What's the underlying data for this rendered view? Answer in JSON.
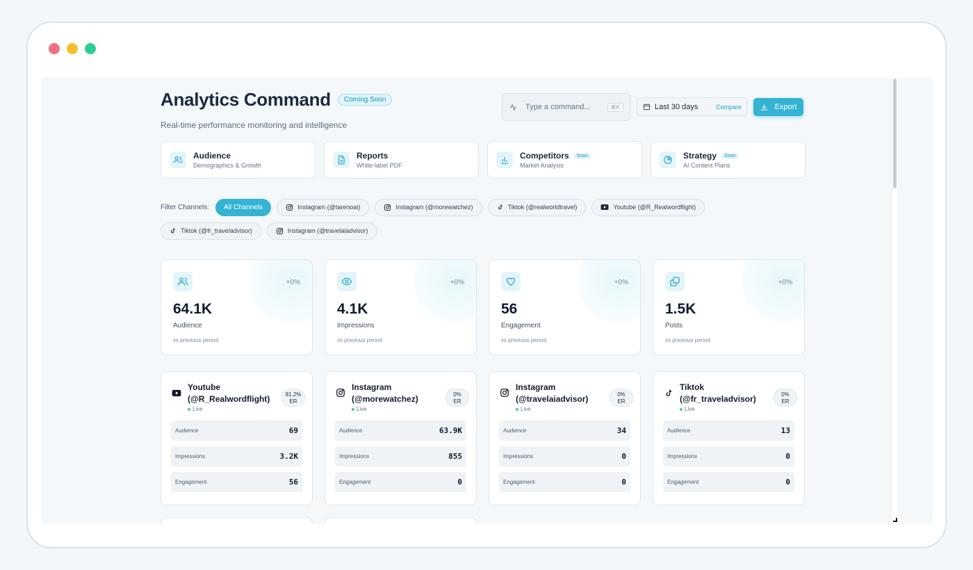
{
  "window": {
    "dot_colors": [
      "#f06f80",
      "#f6c02d",
      "#2fcf8f"
    ]
  },
  "header": {
    "title": "Analytics Command",
    "badge": "Coming Soon",
    "subtitle": "Real-time performance monitoring and intelligence",
    "command_placeholder": "Type a command...",
    "command_shortcut": "⌘K",
    "date_range": "Last 30 days",
    "compare_label": "Compare",
    "export_label": "Export"
  },
  "nav_cards": [
    {
      "title": "Audience",
      "subtitle": "Demographics & Growth",
      "badge": "",
      "icon": "users-icon"
    },
    {
      "title": "Reports",
      "subtitle": "White-label PDF",
      "badge": "",
      "icon": "document-icon"
    },
    {
      "title": "Competitors",
      "subtitle": "Market Analysis",
      "badge": "Soon",
      "icon": "bar-chart-icon"
    },
    {
      "title": "Strategy",
      "subtitle": "AI Content Plans",
      "badge": "Soon",
      "icon": "pie-chart-icon"
    }
  ],
  "filters": {
    "label": "Filter Channels:",
    "chips": [
      {
        "label": "All Channels",
        "icon": "",
        "active": true
      },
      {
        "label": "Instagram (@tarenoai)",
        "icon": "instagram-icon"
      },
      {
        "label": "Instagram (@morewatchez)",
        "icon": "instagram-icon"
      },
      {
        "label": "Tiktok (@realworldtravel)",
        "icon": "tiktok-icon"
      },
      {
        "label": "Youtube (@R_Realwordflight)",
        "icon": "youtube-icon"
      },
      {
        "label": "Tiktok (@fr_traveladvisor)",
        "icon": "tiktok-icon"
      },
      {
        "label": "Instagram (@travelaiadvisor)",
        "icon": "instagram-icon"
      }
    ]
  },
  "stats": [
    {
      "value": "64.1K",
      "label": "Audience",
      "change": "+0%",
      "note": "vs previous period",
      "icon": "users-icon"
    },
    {
      "value": "4.1K",
      "label": "Impressions",
      "change": "+0%",
      "note": "vs previous period",
      "icon": "eye-icon"
    },
    {
      "value": "56",
      "label": "Engagement",
      "change": "+0%",
      "note": "vs previous period",
      "icon": "heart-icon"
    },
    {
      "value": "1.5K",
      "label": "Posts",
      "change": "+0%",
      "note": "vs previous period",
      "icon": "copy-icon"
    }
  ],
  "channels": [
    {
      "name": "Youtube (@R_Realwordflight)",
      "status": "Live",
      "er_value": "81.2%",
      "er_label": "ER",
      "icon": "youtube-icon",
      "metrics": [
        {
          "label": "Audience",
          "value": "69"
        },
        {
          "label": "Impressions",
          "value": "3.2K"
        },
        {
          "label": "Engagement",
          "value": "56"
        }
      ]
    },
    {
      "name": "Instagram (@morewatchez)",
      "status": "Live",
      "er_value": "0%",
      "er_label": "ER",
      "icon": "instagram-icon",
      "metrics": [
        {
          "label": "Audience",
          "value": "63.9K"
        },
        {
          "label": "Impressions",
          "value": "855"
        },
        {
          "label": "Engagement",
          "value": "0"
        }
      ]
    },
    {
      "name": "Instagram (@travelaiadvisor)",
      "status": "Live",
      "er_value": "0%",
      "er_label": "ER",
      "icon": "instagram-icon",
      "metrics": [
        {
          "label": "Audience",
          "value": "34"
        },
        {
          "label": "Impressions",
          "value": "0"
        },
        {
          "label": "Engagement",
          "value": "0"
        }
      ]
    },
    {
      "name": "Tiktok (@fr_traveladvisor)",
      "status": "Live",
      "er_value": "0%",
      "er_label": "ER",
      "icon": "tiktok-icon",
      "metrics": [
        {
          "label": "Audience",
          "value": "13"
        },
        {
          "label": "Impressions",
          "value": "0"
        },
        {
          "label": "Engagement",
          "value": "0"
        }
      ]
    }
  ],
  "colors": {
    "accent": "#35b3d2",
    "live": "#4ccd8e"
  }
}
